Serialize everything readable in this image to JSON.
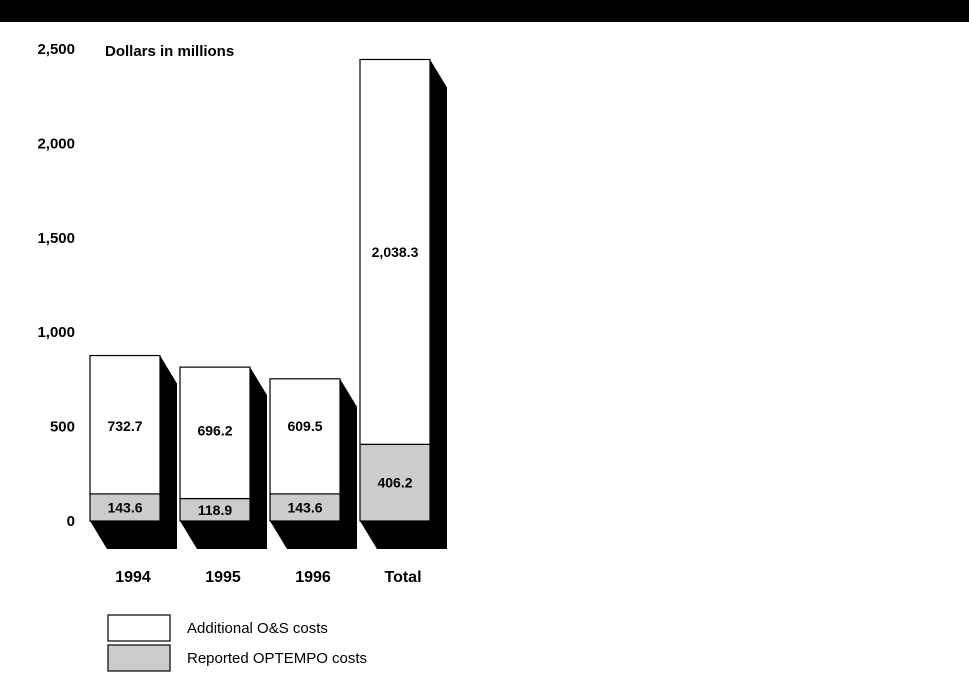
{
  "chart_data": {
    "type": "bar",
    "stacked": true,
    "style": "3d",
    "unit_label": "Dollars in millions",
    "categories": [
      "1994",
      "1995",
      "1996",
      "Total"
    ],
    "series": [
      {
        "name": "Reported OPTEMPO costs",
        "values": [
          143.6,
          118.9,
          143.6,
          406.2
        ],
        "color": "#cccccc"
      },
      {
        "name": "Additional O&S costs",
        "values": [
          732.7,
          696.2,
          609.5,
          2038.3
        ],
        "color": "#ffffff"
      }
    ],
    "ylim": [
      0,
      2500
    ],
    "yticks": [
      0,
      500,
      1000,
      1500,
      2000,
      2500
    ],
    "ytick_labels": [
      "0",
      "500",
      "1,000",
      "1,500",
      "2,000",
      "2,500"
    ],
    "data_labels": {
      "Reported OPTEMPO costs": [
        "143.6",
        "118.9",
        "143.6",
        "406.2"
      ],
      "Additional O&S costs": [
        "732.7",
        "696.2",
        "609.5",
        "2,038.3"
      ]
    },
    "legend_position": "bottom-left",
    "grid": false
  }
}
